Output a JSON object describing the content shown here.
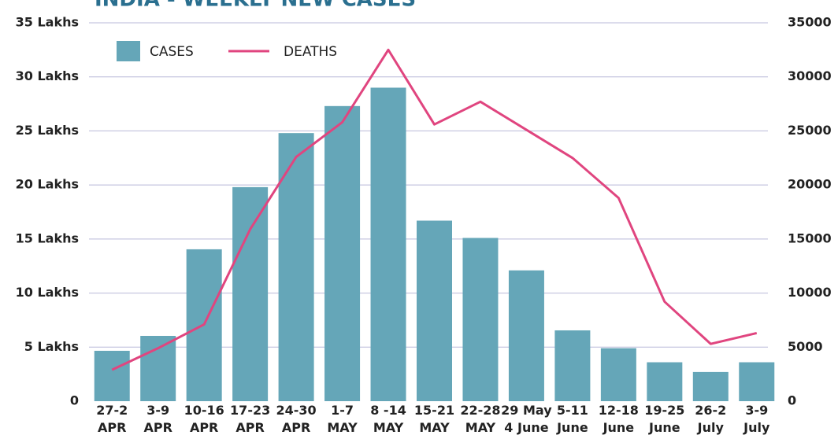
{
  "chart_data": {
    "type": "bar-line",
    "title": "INDIA - WEEKLY NEW CASES",
    "categories": [
      "27-2\nAPR",
      "3-9\nAPR",
      "10-16\nAPR",
      "17-23\nAPR",
      "24-30\nAPR",
      "1-7\nMAY",
      "8 -14\nMAY",
      "15-21\nMAY",
      "22-28\nMAY",
      "29 May\n4 June",
      "5-11\nJune",
      "12-18\nJune",
      "19-25\nJune",
      "26-2\nJuly",
      "3-9\nJuly"
    ],
    "series": [
      {
        "name": "CASES",
        "type": "bar",
        "color": "#65a6b8",
        "values": [
          4.66,
          6.04,
          14.05,
          19.8,
          24.8,
          27.3,
          29.0,
          16.7,
          15.1,
          12.1,
          6.55,
          4.9,
          3.6,
          2.7,
          3.6
        ]
      },
      {
        "name": "DEATHS",
        "type": "line",
        "axis": "y2",
        "color": "#e0457f",
        "values": [
          2900,
          4900,
          7100,
          15900,
          22600,
          25800,
          32500,
          25600,
          27700,
          25100,
          22500,
          18800,
          9200,
          5300,
          6300
        ]
      }
    ],
    "ylim": [
      0,
      35
    ],
    "yticks": [
      0,
      {
        "value": 5,
        "label": "5 Lakhs"
      },
      {
        "value": 10,
        "label": "10 Lakhs"
      },
      {
        "value": 15,
        "label": "15 Lakhs"
      },
      {
        "value": 20,
        "label": "20 Lakhs"
      },
      {
        "value": 25,
        "label": "25 Lakhs"
      },
      {
        "value": 30,
        "label": "30 Lakhs"
      },
      {
        "value": 35,
        "label": "35 Lakhs"
      }
    ],
    "y2lim": [
      0,
      35000
    ],
    "y2ticks": [
      0,
      5000,
      10000,
      15000,
      20000,
      25000,
      30000,
      35000
    ],
    "grid": true,
    "legend": "top-left"
  }
}
